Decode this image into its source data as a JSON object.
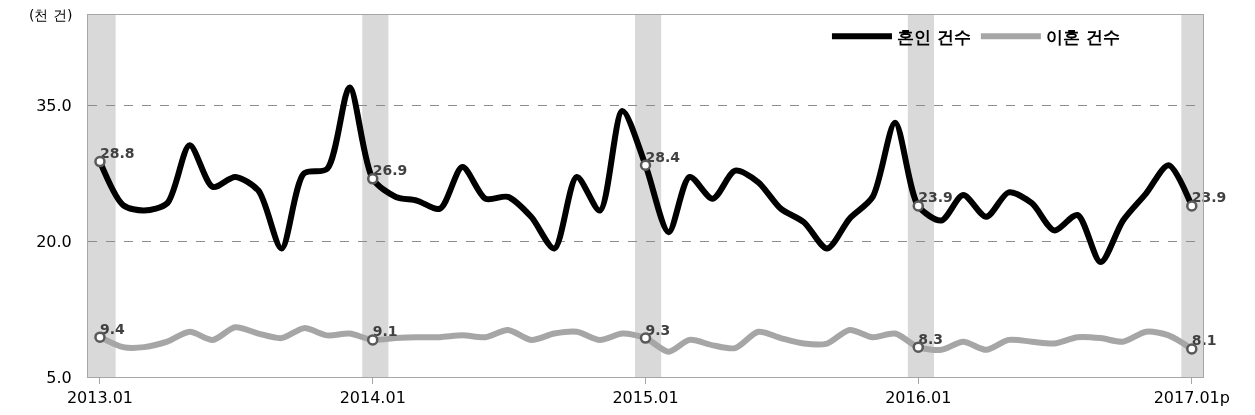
{
  "chart_data": {
    "type": "line",
    "ylabel": "(천 건)",
    "x": [
      "2013-01",
      "2013-02",
      "2013-03",
      "2013-04",
      "2013-05",
      "2013-06",
      "2013-07",
      "2013-08",
      "2013-09",
      "2013-10",
      "2013-11",
      "2013-12",
      "2014-01",
      "2014-02",
      "2014-03",
      "2014-04",
      "2014-05",
      "2014-06",
      "2014-07",
      "2014-08",
      "2014-09",
      "2014-10",
      "2014-11",
      "2014-12",
      "2015-01",
      "2015-02",
      "2015-03",
      "2015-04",
      "2015-05",
      "2015-06",
      "2015-07",
      "2015-08",
      "2015-09",
      "2015-10",
      "2015-11",
      "2015-12",
      "2016-01",
      "2016-02",
      "2016-03",
      "2016-04",
      "2016-05",
      "2016-06",
      "2016-07",
      "2016-08",
      "2016-09",
      "2016-10",
      "2016-11",
      "2016-12",
      "2017-01"
    ],
    "series": [
      {
        "name": "혼인 건수",
        "color": "#000000",
        "values": [
          28.8,
          24.0,
          23.4,
          24.2,
          30.6,
          26.0,
          27.1,
          25.6,
          19.2,
          27.5,
          28.0,
          37.0,
          26.9,
          24.9,
          24.5,
          23.6,
          28.2,
          24.7,
          24.9,
          22.7,
          19.2,
          27.1,
          23.4,
          34.4,
          28.4,
          21.0,
          27.1,
          24.7,
          27.8,
          26.5,
          23.6,
          22.1,
          19.2,
          22.5,
          24.9,
          33.1,
          23.9,
          22.3,
          25.1,
          22.7,
          25.4,
          24.2,
          21.2,
          22.9,
          17.7,
          22.3,
          25.3,
          28.4,
          23.9
        ],
        "value_labels": [
          "28.8",
          null,
          null,
          null,
          null,
          null,
          null,
          null,
          null,
          null,
          null,
          null,
          "26.9",
          null,
          null,
          null,
          null,
          null,
          null,
          null,
          null,
          null,
          null,
          null,
          "28.4",
          null,
          null,
          null,
          null,
          null,
          null,
          null,
          null,
          null,
          null,
          null,
          "23.9",
          null,
          null,
          null,
          null,
          null,
          null,
          null,
          null,
          null,
          null,
          null,
          "23.9"
        ]
      },
      {
        "name": "이혼 건수",
        "color": "#a6a6a6",
        "values": [
          9.4,
          8.3,
          8.3,
          8.9,
          10.0,
          9.1,
          10.5,
          9.8,
          9.3,
          10.4,
          9.6,
          9.8,
          9.1,
          9.3,
          9.4,
          9.4,
          9.6,
          9.4,
          10.2,
          9.1,
          9.8,
          10.0,
          9.1,
          9.8,
          9.3,
          7.8,
          9.1,
          8.5,
          8.2,
          10.0,
          9.3,
          8.7,
          8.7,
          10.2,
          9.4,
          9.8,
          8.3,
          8.0,
          8.9,
          8.0,
          9.1,
          8.9,
          8.7,
          9.4,
          9.3,
          8.9,
          10.0,
          9.6,
          8.1
        ],
        "value_labels": [
          "9.4",
          null,
          null,
          null,
          null,
          null,
          null,
          null,
          null,
          null,
          null,
          null,
          "9.1",
          null,
          null,
          null,
          null,
          null,
          null,
          null,
          null,
          null,
          null,
          null,
          "9.3",
          null,
          null,
          null,
          null,
          null,
          null,
          null,
          null,
          null,
          null,
          null,
          "8.3",
          null,
          null,
          null,
          null,
          null,
          null,
          null,
          null,
          null,
          null,
          null,
          "8.1"
        ]
      }
    ],
    "xlim": [
      "2012-12-16",
      "2017-01-16"
    ],
    "xticks": [
      {
        "value": "2013-01",
        "label": "2013.01"
      },
      {
        "value": "2014-01",
        "label": "2014.01"
      },
      {
        "value": "2015-01",
        "label": "2015.01"
      },
      {
        "value": "2016-01",
        "label": "2016.01"
      },
      {
        "value": "2017-01",
        "label": "2017.01p"
      }
    ],
    "ylim": [
      5,
      45
    ],
    "yticks": [
      {
        "value": 5,
        "label": "5.0"
      },
      {
        "value": 20,
        "label": "20.0"
      },
      {
        "value": 35,
        "label": "35.0"
      }
    ],
    "bands": [
      {
        "axis": "x",
        "from": "2012-12-16",
        "to": "2013-01-22",
        "color": "#d9d9d9"
      },
      {
        "axis": "x",
        "from": "2013-12-18",
        "to": "2014-01-22",
        "color": "#d9d9d9"
      },
      {
        "axis": "x",
        "from": "2014-12-18",
        "to": "2015-01-22",
        "color": "#d9d9d9"
      },
      {
        "axis": "x",
        "from": "2015-12-18",
        "to": "2016-01-22",
        "color": "#d9d9d9"
      },
      {
        "axis": "x",
        "from": "2016-12-18",
        "to": "2017-01-16",
        "color": "#d9d9d9"
      }
    ],
    "grid": "y",
    "legend": "top right",
    "line_style": "solid"
  }
}
